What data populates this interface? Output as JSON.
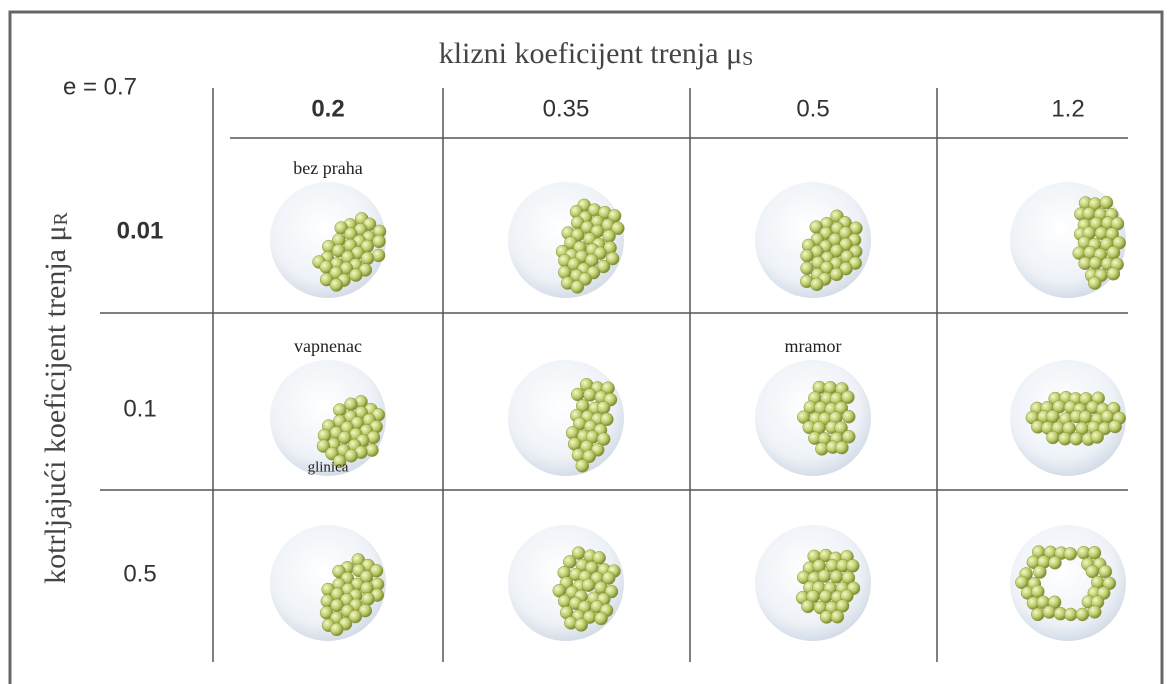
{
  "corner": "e = 0.7",
  "column_axis": {
    "text": "klizni koeficijent trenja μ",
    "subscript": "S"
  },
  "row_axis": {
    "text": "kotrljajući koeficijent trenja μ",
    "subscript": "R"
  },
  "columns": [
    "0.2",
    "0.35",
    "0.5",
    "1.2"
  ],
  "rows": [
    "0.01",
    "0.1",
    "0.5"
  ],
  "cell_labels": [
    {
      "row": 0,
      "col": 0,
      "text": "bez praha",
      "position": "top"
    },
    {
      "row": 1,
      "col": 0,
      "text": "vapnenac",
      "position": "top"
    },
    {
      "row": 1,
      "col": 0,
      "text": "glinica",
      "position": "bottom"
    },
    {
      "row": 1,
      "col": 2,
      "text": "mramor",
      "position": "top"
    }
  ]
}
